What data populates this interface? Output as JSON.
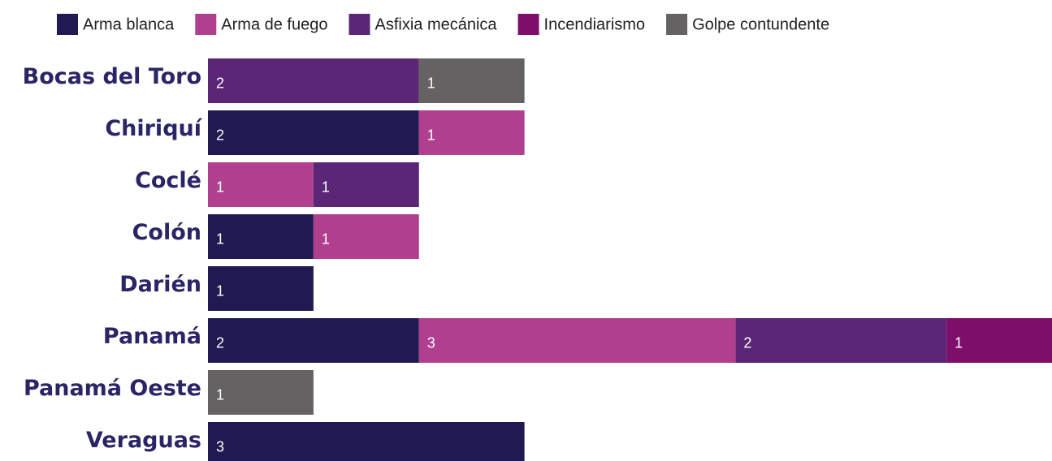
{
  "chart_data": {
    "type": "stacked-bar-horizontal",
    "categories": [
      "Bocas del Toro",
      "Chiriquí",
      "Coclé",
      "Colón",
      "Darién",
      "Panamá",
      "Panamá Oeste",
      "Veraguas"
    ],
    "series": [
      {
        "name": "Arma blanca",
        "color": "#211a52",
        "values": [
          null,
          2,
          null,
          1,
          1,
          2,
          null,
          3
        ]
      },
      {
        "name": "Arma de fuego",
        "color": "#b0408f",
        "values": [
          null,
          1,
          1,
          1,
          null,
          3,
          null,
          null
        ]
      },
      {
        "name": "Asfixia mecánica",
        "color": "#5c2677",
        "values": [
          2,
          null,
          1,
          null,
          null,
          2,
          null,
          null
        ]
      },
      {
        "name": "Incendiarismo",
        "color": "#7d0f6a",
        "values": [
          null,
          null,
          null,
          null,
          null,
          1,
          null,
          null
        ]
      },
      {
        "name": "Golpe contundente",
        "color": "#646262",
        "values": [
          1,
          null,
          null,
          null,
          null,
          null,
          1,
          null
        ]
      }
    ],
    "xlim": [
      0,
      8
    ],
    "legend": "top"
  }
}
